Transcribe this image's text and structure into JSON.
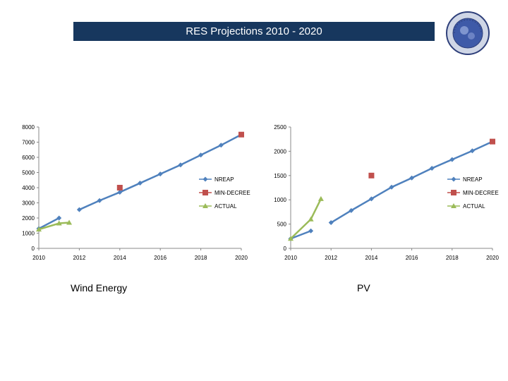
{
  "slide": {
    "title": "RES Projections 2010 - 2020",
    "title_bar_color": "#17375e",
    "seal_icon": "ministry-seal-logo"
  },
  "chart_data": [
    {
      "type": "line",
      "caption": "Wind Energy",
      "x_ticks": [
        2010,
        2012,
        2014,
        2016,
        2018,
        2020
      ],
      "y_ticks": [
        0,
        1000,
        2000,
        3000,
        4000,
        5000,
        6000,
        7000,
        8000
      ],
      "xlim": [
        2010,
        2020
      ],
      "ylim": [
        0,
        8000
      ],
      "legend_position": "center-right",
      "series": [
        {
          "name": "NREAP",
          "color": "#4f81bd",
          "marker": "diamond",
          "segments": [
            [
              [
                2010,
                1300
              ],
              [
                2011,
                2000
              ]
            ],
            [
              [
                2012,
                2550
              ],
              [
                2013,
                3150
              ],
              [
                2014,
                3700
              ],
              [
                2015,
                4300
              ],
              [
                2016,
                4900
              ],
              [
                2017,
                5500
              ],
              [
                2018,
                6150
              ],
              [
                2019,
                6800
              ],
              [
                2020,
                7500
              ]
            ]
          ]
        },
        {
          "name": "MIN-DECREE",
          "color": "#c0504d",
          "marker": "square",
          "segments": [
            [
              [
                2014,
                4000
              ]
            ],
            [
              [
                2020,
                7500
              ]
            ]
          ]
        },
        {
          "name": "ACTUAL",
          "color": "#9bbb59",
          "marker": "triangle",
          "segments": [
            [
              [
                2010,
                1250
              ],
              [
                2011,
                1650
              ],
              [
                2011.5,
                1700
              ]
            ]
          ]
        }
      ]
    },
    {
      "type": "line",
      "caption": "PV",
      "x_ticks": [
        2010,
        2012,
        2014,
        2016,
        2018,
        2020
      ],
      "y_ticks": [
        0,
        500,
        1000,
        1500,
        2000,
        2500
      ],
      "xlim": [
        2010,
        2020
      ],
      "ylim": [
        0,
        2500
      ],
      "legend_position": "center-right",
      "series": [
        {
          "name": "NREAP",
          "color": "#4f81bd",
          "marker": "diamond",
          "segments": [
            [
              [
                2010,
                200
              ],
              [
                2011,
                360
              ]
            ],
            [
              [
                2012,
                530
              ],
              [
                2013,
                780
              ],
              [
                2014,
                1020
              ],
              [
                2015,
                1260
              ],
              [
                2016,
                1450
              ],
              [
                2017,
                1650
              ],
              [
                2018,
                1830
              ],
              [
                2019,
                2010
              ],
              [
                2020,
                2200
              ]
            ]
          ]
        },
        {
          "name": "MIN-DECREE",
          "color": "#c0504d",
          "marker": "square",
          "segments": [
            [
              [
                2014,
                1500
              ]
            ],
            [
              [
                2020,
                2200
              ]
            ]
          ]
        },
        {
          "name": "ACTUAL",
          "color": "#9bbb59",
          "marker": "triangle",
          "segments": [
            [
              [
                2010,
                200
              ],
              [
                2011,
                600
              ],
              [
                2011.5,
                1020
              ]
            ]
          ]
        }
      ]
    }
  ]
}
